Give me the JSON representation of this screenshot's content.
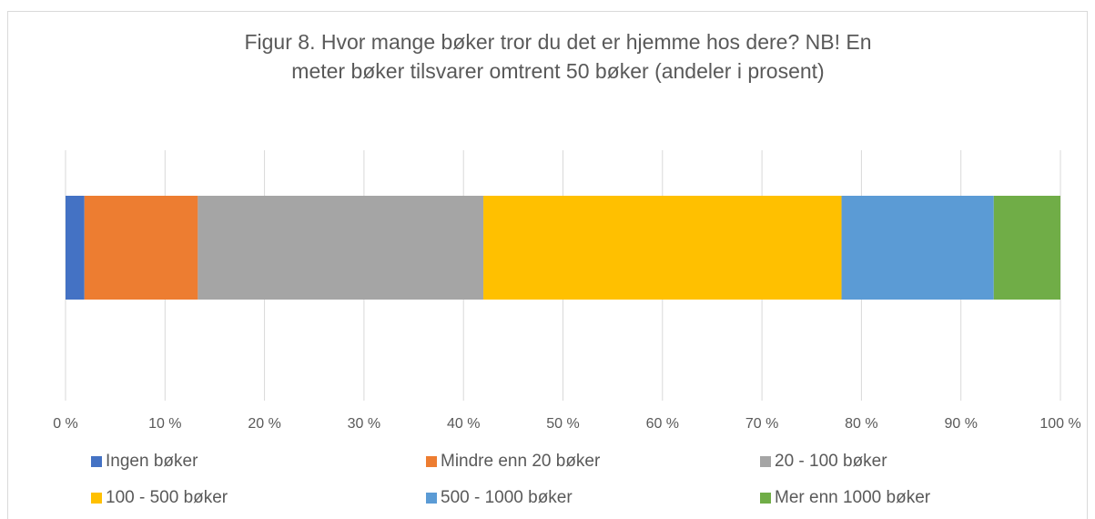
{
  "chart_data": {
    "type": "stacked_bar_horizontal",
    "title": [
      "Figur 8. Hvor mange bøker tror du det er hjemme hos dere? NB! En",
      "meter bøker tilsvarer omtrent 50 bøker (andeler i prosent)"
    ],
    "categories": [
      null
    ],
    "series": [
      {
        "name": "Ingen bøker",
        "color": "#4472c4",
        "values": [
          1.9
        ]
      },
      {
        "name": "Mindre enn 20 bøker",
        "color": "#ed7d31",
        "values": [
          11.4
        ]
      },
      {
        "name": "20 - 100 bøker",
        "color": "#a5a5a5",
        "values": [
          28.7
        ]
      },
      {
        "name": "100 - 500 bøker",
        "color": "#ffc000",
        "values": [
          36.0
        ]
      },
      {
        "name": "500 - 1000 bøker",
        "color": "#5b9bd5",
        "values": [
          15.3
        ]
      },
      {
        "name": "Mer enn 1000 bøker",
        "color": "#70ad47",
        "values": [
          6.7
        ]
      }
    ],
    "xlim": [
      0,
      100
    ],
    "xticks": [
      {
        "value": 0,
        "label": "0 %"
      },
      {
        "value": 10,
        "label": "10 %"
      },
      {
        "value": 20,
        "label": "20 %"
      },
      {
        "value": 30,
        "label": "30 %"
      },
      {
        "value": 40,
        "label": "40 %"
      },
      {
        "value": 50,
        "label": "50 %"
      },
      {
        "value": 60,
        "label": "60 %"
      },
      {
        "value": 70,
        "label": "70 %"
      },
      {
        "value": 80,
        "label": "80 %"
      },
      {
        "value": 90,
        "label": "90 %"
      },
      {
        "value": 100,
        "label": "100 %"
      }
    ],
    "grid": true,
    "legend": "bottom"
  }
}
